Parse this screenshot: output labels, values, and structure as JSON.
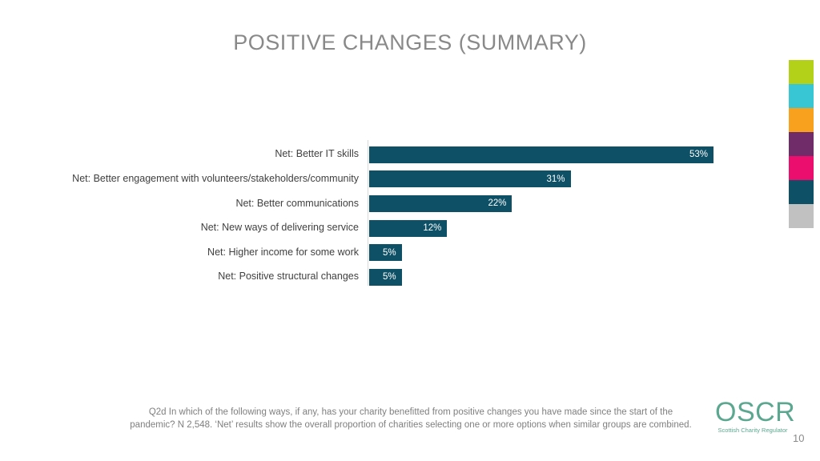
{
  "slide": {
    "title": "POSITIVE CHANGES (SUMMARY)",
    "page_number": "10",
    "footnote": "Q2d In which of the following ways, if any, has your charity benefitted from positive changes you have made since the start of the pandemic? N 2,548. ‘Net’ results show the overall proportion of charities selecting one or more options when similar groups are combined.",
    "background_color": "#ffffff",
    "title_color": "#898989"
  },
  "logo": {
    "text": "OSCR",
    "tagline": "Scottish Charity Regulator",
    "color": "#5ba78f"
  },
  "palette_strip": {
    "colors": [
      "#b2d118",
      "#38c5d4",
      "#f7a11e",
      "#6f2c68",
      "#ec0e6e",
      "#0e5066",
      "#c1c1c1"
    ]
  },
  "chart_data": {
    "type": "bar",
    "orientation": "horizontal",
    "title": "",
    "xlabel": "",
    "ylabel": "",
    "categories": [
      "Net: Better IT skills",
      "Net: Better engagement with volunteers/stakeholders/community",
      "Net: Better communications",
      "Net: New ways of delivering service",
      "Net: Higher income for some work",
      "Net: Positive structural changes"
    ],
    "values": [
      53,
      31,
      22,
      12,
      5,
      5
    ],
    "value_labels": [
      "53%",
      "31%",
      "22%",
      "12%",
      "5%",
      "5%"
    ],
    "xlim": [
      0,
      53
    ],
    "bar_color": "#0e5066",
    "value_label_color": "#ffffff",
    "grid": "off",
    "legend": "none"
  }
}
